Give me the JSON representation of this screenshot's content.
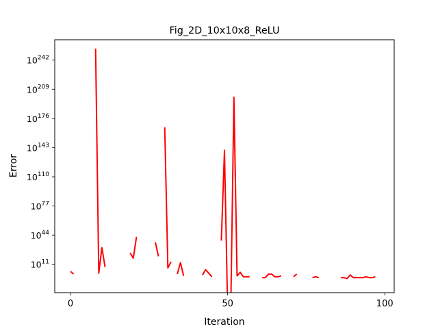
{
  "chart_data": {
    "type": "line",
    "title": "Fig_2D_10x10x8_ReLU",
    "xlabel": "Iteration",
    "ylabel": "Error",
    "y_scale": "log",
    "xlim": [
      -5,
      103
    ],
    "ylim_log10": [
      -21,
      265
    ],
    "x_ticks": [
      0,
      50,
      100
    ],
    "y_ticks": [
      {
        "base": "10",
        "exp": "11"
      },
      {
        "base": "10",
        "exp": "44"
      },
      {
        "base": "10",
        "exp": "77"
      },
      {
        "base": "10",
        "exp": "110"
      },
      {
        "base": "10",
        "exp": "143"
      },
      {
        "base": "10",
        "exp": "176"
      },
      {
        "base": "10",
        "exp": "209"
      },
      {
        "base": "10",
        "exp": "242"
      }
    ],
    "grid": false,
    "series": [
      {
        "color": "#ff0000",
        "x": [
          0,
          1,
          2,
          3,
          4,
          5,
          6,
          7,
          8,
          9,
          10,
          11,
          12,
          13,
          14,
          15,
          16,
          17,
          18,
          19,
          20,
          21,
          22,
          23,
          24,
          25,
          26,
          27,
          28,
          29,
          30,
          31,
          32,
          33,
          34,
          35,
          36,
          37,
          38,
          39,
          40,
          41,
          42,
          43,
          44,
          45,
          46,
          47,
          48,
          49,
          50,
          51,
          52,
          53,
          54,
          55,
          56,
          57,
          58,
          59,
          60,
          61,
          62,
          63,
          64,
          65,
          66,
          67,
          68,
          69,
          70,
          71,
          72,
          73,
          74,
          75,
          76,
          77,
          78,
          79,
          80,
          81,
          82,
          83,
          84,
          85,
          86,
          87,
          88,
          89,
          90,
          91,
          92,
          93,
          94,
          95,
          96,
          97
        ],
        "log10_y": [
          3,
          0,
          null,
          null,
          null,
          null,
          null,
          null,
          255,
          1,
          30,
          8,
          null,
          null,
          null,
          null,
          null,
          null,
          null,
          24,
          18,
          42,
          null,
          null,
          null,
          null,
          null,
          36,
          20,
          null,
          166,
          7,
          14,
          null,
          0,
          13,
          -2,
          null,
          null,
          null,
          null,
          null,
          -1,
          5,
          1,
          -3,
          null,
          null,
          38,
          140,
          -40,
          -40,
          200,
          -2,
          2,
          -3,
          -3,
          -3,
          null,
          -4,
          null,
          -4,
          -4,
          0,
          0,
          -3,
          -3,
          -2,
          null,
          null,
          null,
          -3,
          0,
          null,
          null,
          null,
          null,
          -4,
          -3,
          -4,
          null,
          null,
          -3,
          null,
          null,
          null,
          -4,
          -4,
          -5,
          -1,
          -4,
          -4,
          -4,
          -4,
          -3,
          -4,
          -4,
          -3
        ]
      }
    ]
  }
}
